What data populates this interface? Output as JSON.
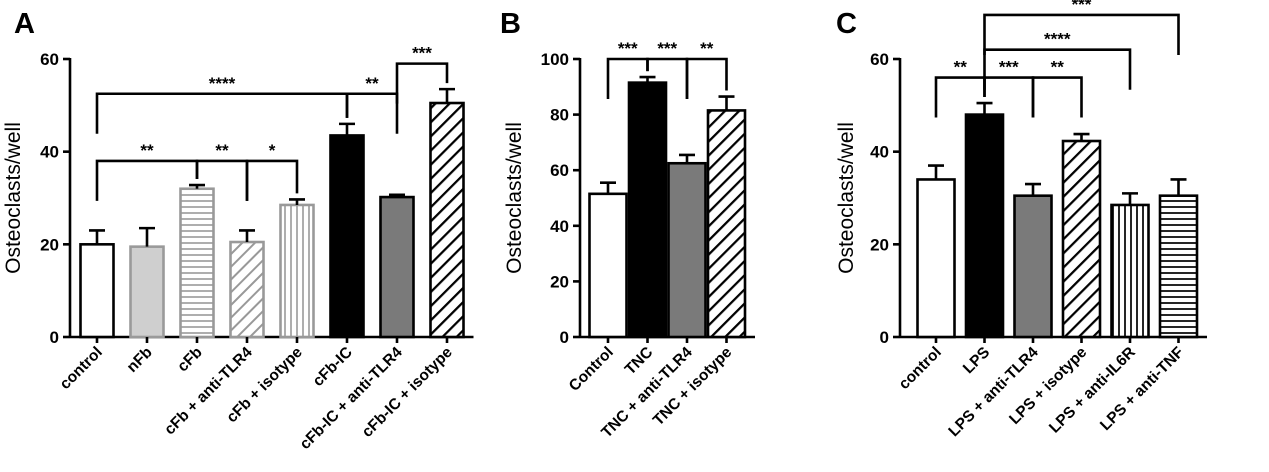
{
  "chart_data": [
    {
      "panel": "A",
      "type": "bar",
      "ylabel": "Osteoclasts/well",
      "ylim": [
        0,
        60
      ],
      "yticks": [
        0,
        20,
        40,
        60
      ],
      "categories": [
        "control",
        "nFb",
        "cFb",
        "cFb + anti-TLR4",
        "cFb + isotype",
        "cFb-IC",
        "cFb-IC + anti-TLR4",
        "cFb-IC + isotype"
      ],
      "values": [
        20,
        19.5,
        32,
        20.5,
        28.5,
        43.5,
        30.2,
        50.5
      ],
      "errors": [
        3,
        4,
        0.8,
        2.5,
        1.2,
        2.5,
        0.5,
        3
      ],
      "fills": [
        "white",
        "lightgray",
        "hlines-gray",
        "diag-gray",
        "vlines-gray",
        "black",
        "darkgray",
        "diag-black"
      ],
      "significance": [
        {
          "from": 0,
          "to": 2,
          "label": "**",
          "y": 38
        },
        {
          "from": 2,
          "to": 3,
          "label": "**",
          "y": 38
        },
        {
          "from": 3,
          "to": 4,
          "label": "*",
          "y": 38
        },
        {
          "from": 0,
          "to": 5,
          "label": "****",
          "y": 52.5
        },
        {
          "from": 5,
          "to": 6,
          "label": "**",
          "y": 52.5
        },
        {
          "from": 6,
          "to": 7,
          "label": "***",
          "y": 59
        }
      ]
    },
    {
      "panel": "B",
      "type": "bar",
      "ylabel": "Osteoclasts/well",
      "ylim": [
        0,
        100
      ],
      "yticks": [
        0,
        20,
        40,
        60,
        80,
        100
      ],
      "categories": [
        "Control",
        "TNC",
        "TNC + anti-TLR4",
        "TNC + isotype"
      ],
      "values": [
        51.5,
        91.5,
        62.5,
        81.5
      ],
      "errors": [
        4,
        2,
        3,
        5
      ],
      "fills": [
        "white",
        "black",
        "darkgray",
        "diag-black"
      ],
      "significance": [
        {
          "from": 0,
          "to": 1,
          "label": "***",
          "y": 100
        },
        {
          "from": 1,
          "to": 2,
          "label": "***",
          "y": 100
        },
        {
          "from": 2,
          "to": 3,
          "label": "**",
          "y": 100
        }
      ]
    },
    {
      "panel": "C",
      "type": "bar",
      "ylabel": "Osteoclasts/well",
      "ylim": [
        0,
        60
      ],
      "yticks": [
        0,
        20,
        40,
        60
      ],
      "categories": [
        "control",
        "LPS",
        "LPS + anti-TLR4",
        "LPS + isotype",
        "LPS + anti-IL6R",
        "LPS + anti-TNF"
      ],
      "values": [
        34,
        48,
        30.5,
        42.3,
        28.5,
        30.5
      ],
      "errors": [
        3,
        2.5,
        2.5,
        1.5,
        2.5,
        3.5
      ],
      "fills": [
        "white",
        "black",
        "darkgray",
        "diag-black",
        "vlines-black",
        "hlines-black"
      ],
      "significance": [
        {
          "from": 0,
          "to": 1,
          "label": "**",
          "y": 56
        },
        {
          "from": 1,
          "to": 2,
          "label": "***",
          "y": 56
        },
        {
          "from": 2,
          "to": 3,
          "label": "**",
          "y": 56
        },
        {
          "from": 1,
          "to": 4,
          "label": "****",
          "y": 62
        },
        {
          "from": 1,
          "to": 5,
          "label": "***",
          "y": 69.5
        }
      ]
    }
  ]
}
